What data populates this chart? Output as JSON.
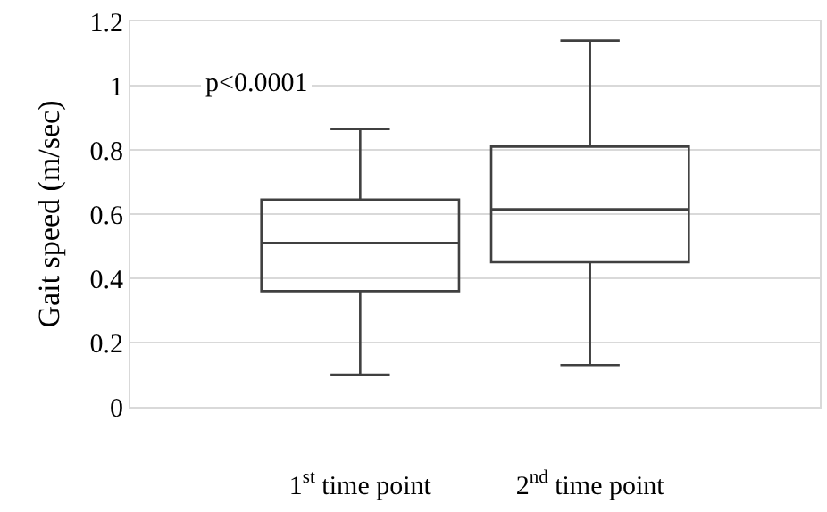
{
  "chart_data": {
    "type": "box",
    "ylabel": "Gait speed (m/sec)",
    "categories": [
      "1$^{st}$ time point",
      "2$^{nd}$ time point"
    ],
    "boxes": [
      {
        "low": 0.1,
        "q1": 0.36,
        "median": 0.51,
        "q3": 0.645,
        "high": 0.865
      },
      {
        "low": 0.13,
        "q1": 0.45,
        "median": 0.615,
        "q3": 0.81,
        "high": 1.14
      }
    ],
    "color": "#404040",
    "ylim": [
      0,
      1.2
    ],
    "yticks": [
      0,
      0.2,
      0.4,
      0.6,
      0.8,
      1,
      1.2
    ],
    "grid": "y",
    "legend": false,
    "annotations": [
      "p<0.0001"
    ]
  }
}
